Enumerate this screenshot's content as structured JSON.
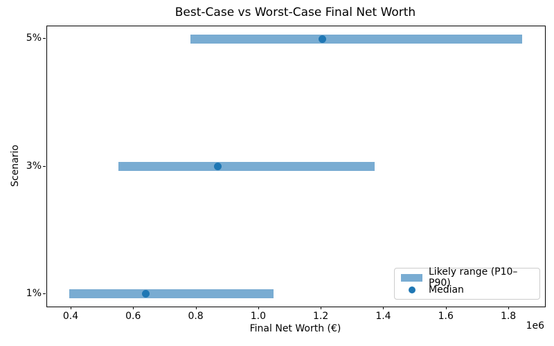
{
  "chart_data": {
    "type": "bar",
    "subtype": "horizontal-range",
    "title": "Best-Case vs Worst-Case Final Net Worth",
    "xlabel": "Final Net Worth (€)",
    "ylabel": "Scenario",
    "categories": [
      "5%",
      "3%",
      "1%"
    ],
    "series": [
      {
        "name": "Likely range (P10–P90)",
        "type": "range-bar",
        "p10": [
          781000,
          551000,
          394000
        ],
        "p90": [
          1843000,
          1370000,
          1047000
        ]
      },
      {
        "name": "Median",
        "type": "scatter",
        "values": [
          1204000,
          868000,
          638000
        ]
      }
    ],
    "xlim": [
      322500,
      1915000
    ],
    "xticks": [
      400000,
      600000,
      800000,
      1000000,
      1200000,
      1400000,
      1600000,
      1800000
    ],
    "xtick_labels": [
      "0.4",
      "0.6",
      "0.8",
      "1.0",
      "1.2",
      "1.4",
      "1.6",
      "1.8"
    ],
    "x_offset_label": "1e6",
    "grid": false,
    "legend_position": "lower right",
    "colors": {
      "range_bar": "#79acd2",
      "median_dot": "#1f77b4",
      "spine": "#000000",
      "background": "#ffffff"
    }
  }
}
